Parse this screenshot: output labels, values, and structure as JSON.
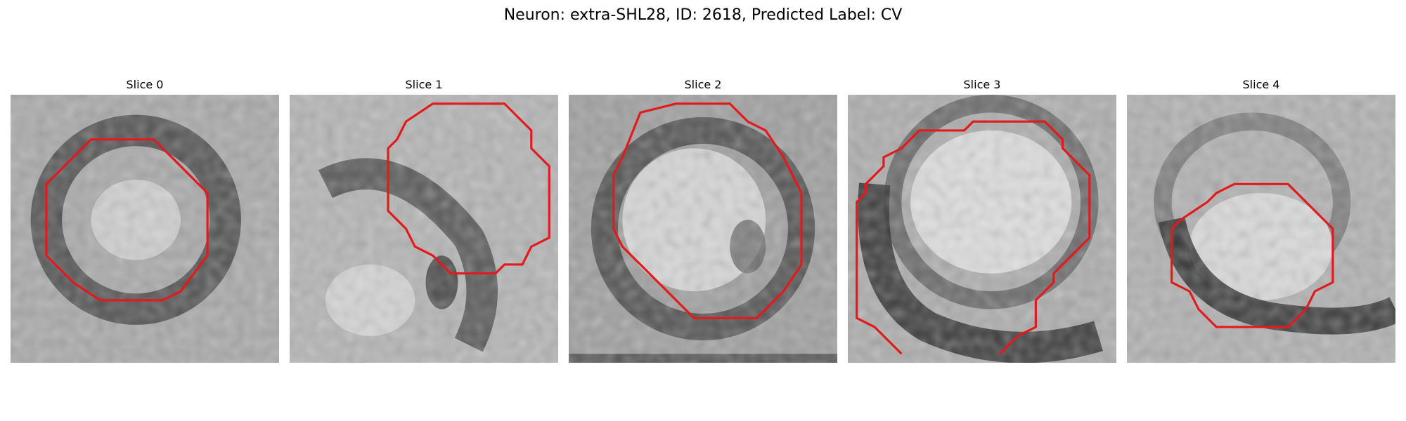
{
  "figure": {
    "suptitle": "Neuron: extra-SHL28, ID: 2618, Predicted Label: CV"
  },
  "panels": [
    {
      "title": "Slice 0"
    },
    {
      "title": "Slice 1"
    },
    {
      "title": "Slice 2"
    },
    {
      "title": "Slice 3"
    },
    {
      "title": "Slice 4"
    }
  ],
  "colors": {
    "contour": "#e31a1c",
    "background": "#ffffff"
  }
}
